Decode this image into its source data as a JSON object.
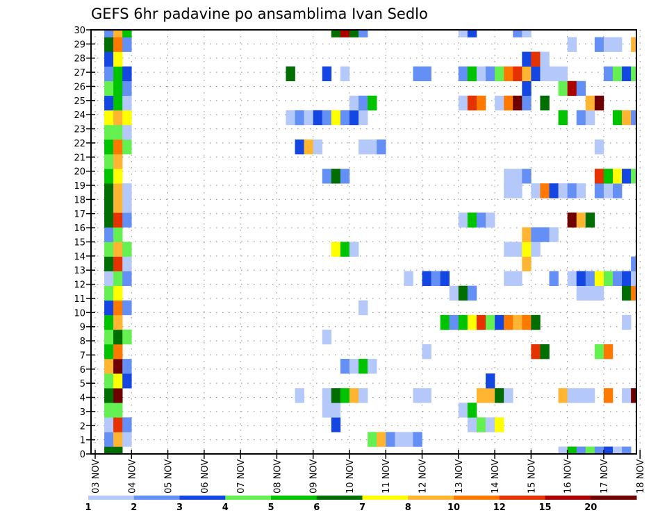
{
  "chart_data": {
    "type": "heatmap",
    "title": "GEFS 6hr padavine po ansamblima Ivan Sedlo",
    "xlabel": "",
    "ylabel": "",
    "y_ticks": [
      "0",
      "1",
      "2",
      "3",
      "4",
      "5",
      "6",
      "7",
      "8",
      "9",
      "10",
      "11",
      "12",
      "13",
      "14",
      "15",
      "16",
      "17",
      "18",
      "19",
      "20",
      "21",
      "22",
      "23",
      "24",
      "25",
      "26",
      "27",
      "28",
      "29",
      "30"
    ],
    "x_ticks": [
      "03 NOV",
      "04 NOV",
      "05 NOV",
      "06 NOV",
      "07 NOV",
      "08 NOV",
      "09 NOV",
      "10 NOV",
      "11 NOV",
      "12 NOV",
      "13 NOV",
      "14 NOV",
      "15 NOV",
      "16 NOV",
      "17 NOV",
      "18 NOV"
    ],
    "steps_per_day": 4,
    "colorbar": {
      "labels": [
        "1",
        "2",
        "3",
        "4",
        "5",
        "6",
        "7",
        "8",
        "10",
        "12",
        "15",
        "20"
      ],
      "colors": [
        "#b4c8fa",
        "#6490f5",
        "#1446e1",
        "#64f050",
        "#00c300",
        "#006e00",
        "#ffff00",
        "#ffb432",
        "#ff7800",
        "#e63200",
        "#aa0000",
        "#6e0000"
      ]
    },
    "note_cells": "each member row: list of [time_step_index, color_level_index]",
    "members": [
      {
        "row": 0,
        "cells": [
          [
            1,
            5
          ],
          [
            2,
            5
          ],
          [
            51,
            0
          ],
          [
            52,
            4
          ],
          [
            53,
            1
          ],
          [
            54,
            3
          ],
          [
            55,
            1
          ],
          [
            56,
            2
          ],
          [
            57,
            0
          ],
          [
            58,
            1
          ]
        ]
      },
      {
        "row": 1,
        "cells": [
          [
            1,
            1
          ],
          [
            2,
            7
          ],
          [
            3,
            0
          ],
          [
            30,
            3
          ],
          [
            31,
            7
          ],
          [
            32,
            1
          ],
          [
            33,
            0
          ],
          [
            34,
            0
          ],
          [
            35,
            1
          ]
        ]
      },
      {
        "row": 2,
        "cells": [
          [
            1,
            0
          ],
          [
            2,
            9
          ],
          [
            3,
            1
          ],
          [
            26,
            2
          ],
          [
            41,
            0
          ],
          [
            42,
            3
          ],
          [
            43,
            0
          ],
          [
            44,
            6
          ]
        ]
      },
      {
        "row": 3,
        "cells": [
          [
            1,
            3
          ],
          [
            2,
            3
          ],
          [
            25,
            0
          ],
          [
            26,
            0
          ],
          [
            40,
            0
          ],
          [
            41,
            4
          ]
        ]
      },
      {
        "row": 4,
        "cells": [
          [
            1,
            5
          ],
          [
            2,
            11
          ],
          [
            22,
            0
          ],
          [
            25,
            0
          ],
          [
            26,
            5
          ],
          [
            27,
            4
          ],
          [
            28,
            7
          ],
          [
            29,
            0
          ],
          [
            35,
            0
          ],
          [
            36,
            0
          ],
          [
            42,
            7
          ],
          [
            43,
            7
          ],
          [
            44,
            5
          ],
          [
            45,
            0
          ],
          [
            51,
            7
          ],
          [
            52,
            0
          ],
          [
            53,
            0
          ],
          [
            54,
            0
          ],
          [
            56,
            8
          ],
          [
            58,
            0
          ],
          [
            59,
            11
          ]
        ]
      },
      {
        "row": 5,
        "cells": [
          [
            1,
            3
          ],
          [
            2,
            6
          ],
          [
            3,
            2
          ],
          [
            43,
            2
          ]
        ]
      },
      {
        "row": 6,
        "cells": [
          [
            1,
            7
          ],
          [
            2,
            11
          ],
          [
            3,
            1
          ],
          [
            27,
            1
          ],
          [
            28,
            0
          ],
          [
            29,
            4
          ],
          [
            30,
            0
          ]
        ]
      },
      {
        "row": 7,
        "cells": [
          [
            1,
            4
          ],
          [
            2,
            8
          ],
          [
            36,
            0
          ],
          [
            48,
            9
          ],
          [
            49,
            5
          ],
          [
            55,
            3
          ],
          [
            56,
            8
          ]
        ]
      },
      {
        "row": 8,
        "cells": [
          [
            1,
            3
          ],
          [
            2,
            5
          ],
          [
            3,
            3
          ],
          [
            25,
            0
          ]
        ]
      },
      {
        "row": 9,
        "cells": [
          [
            1,
            4
          ],
          [
            2,
            7
          ],
          [
            38,
            4
          ],
          [
            39,
            1
          ],
          [
            40,
            4
          ],
          [
            41,
            6
          ],
          [
            42,
            9
          ],
          [
            43,
            3
          ],
          [
            44,
            2
          ],
          [
            45,
            8
          ],
          [
            46,
            7
          ],
          [
            47,
            8
          ],
          [
            48,
            5
          ],
          [
            58,
            0
          ]
        ]
      },
      {
        "row": 10,
        "cells": [
          [
            1,
            2
          ],
          [
            2,
            8
          ],
          [
            3,
            1
          ],
          [
            29,
            0
          ]
        ]
      },
      {
        "row": 11,
        "cells": [
          [
            1,
            3
          ],
          [
            2,
            6
          ],
          [
            39,
            0
          ],
          [
            40,
            5
          ],
          [
            41,
            1
          ],
          [
            53,
            0
          ],
          [
            54,
            0
          ],
          [
            55,
            0
          ],
          [
            58,
            5
          ],
          [
            59,
            8
          ]
        ]
      },
      {
        "row": 12,
        "cells": [
          [
            1,
            0
          ],
          [
            2,
            3
          ],
          [
            3,
            1
          ],
          [
            34,
            0
          ],
          [
            36,
            2
          ],
          [
            37,
            1
          ],
          [
            38,
            2
          ],
          [
            45,
            0
          ],
          [
            46,
            0
          ],
          [
            50,
            1
          ],
          [
            52,
            0
          ],
          [
            53,
            2
          ],
          [
            54,
            1
          ],
          [
            55,
            6
          ],
          [
            56,
            3
          ],
          [
            57,
            1
          ],
          [
            58,
            2
          ],
          [
            59,
            0
          ]
        ]
      },
      {
        "row": 13,
        "cells": [
          [
            1,
            5
          ],
          [
            2,
            9
          ],
          [
            3,
            0
          ],
          [
            47,
            7
          ],
          [
            59,
            1
          ]
        ]
      },
      {
        "row": 14,
        "cells": [
          [
            1,
            3
          ],
          [
            2,
            7
          ],
          [
            3,
            3
          ],
          [
            26,
            6
          ],
          [
            27,
            4
          ],
          [
            28,
            0
          ],
          [
            45,
            0
          ],
          [
            46,
            0
          ],
          [
            47,
            6
          ],
          [
            48,
            0
          ]
        ]
      },
      {
        "row": 15,
        "cells": [
          [
            1,
            1
          ],
          [
            2,
            3
          ],
          [
            47,
            7
          ],
          [
            48,
            1
          ],
          [
            49,
            1
          ],
          [
            50,
            0
          ]
        ]
      },
      {
        "row": 16,
        "cells": [
          [
            1,
            5
          ],
          [
            2,
            9
          ],
          [
            3,
            1
          ],
          [
            40,
            0
          ],
          [
            41,
            4
          ],
          [
            42,
            1
          ],
          [
            43,
            0
          ],
          [
            52,
            11
          ],
          [
            53,
            7
          ],
          [
            54,
            5
          ]
        ]
      },
      {
        "row": 17,
        "cells": [
          [
            1,
            5
          ],
          [
            2,
            7
          ],
          [
            3,
            0
          ]
        ]
      },
      {
        "row": 18,
        "cells": [
          [
            1,
            5
          ],
          [
            2,
            7
          ],
          [
            3,
            0
          ],
          [
            45,
            0
          ],
          [
            46,
            0
          ],
          [
            48,
            0
          ],
          [
            49,
            8
          ],
          [
            50,
            2
          ],
          [
            51,
            0
          ],
          [
            52,
            1
          ],
          [
            53,
            0
          ],
          [
            55,
            1
          ],
          [
            56,
            0
          ],
          [
            57,
            1
          ]
        ]
      },
      {
        "row": 19,
        "cells": [
          [
            1,
            4
          ],
          [
            2,
            6
          ],
          [
            25,
            1
          ],
          [
            26,
            5
          ],
          [
            27,
            1
          ],
          [
            45,
            0
          ],
          [
            46,
            0
          ],
          [
            47,
            1
          ],
          [
            55,
            9
          ],
          [
            56,
            4
          ],
          [
            57,
            6
          ],
          [
            58,
            2
          ],
          [
            59,
            3
          ]
        ]
      },
      {
        "row": 20,
        "cells": [
          [
            1,
            3
          ],
          [
            2,
            7
          ]
        ]
      },
      {
        "row": 21,
        "cells": [
          [
            1,
            4
          ],
          [
            2,
            8
          ],
          [
            3,
            3
          ],
          [
            22,
            2
          ],
          [
            23,
            7
          ],
          [
            24,
            0
          ],
          [
            29,
            0
          ],
          [
            30,
            0
          ],
          [
            31,
            1
          ],
          [
            55,
            0
          ]
        ]
      },
      {
        "row": 22,
        "cells": [
          [
            1,
            3
          ],
          [
            2,
            3
          ],
          [
            3,
            0
          ]
        ]
      },
      {
        "row": 23,
        "cells": [
          [
            1,
            6
          ],
          [
            2,
            7
          ],
          [
            3,
            6
          ],
          [
            21,
            0
          ],
          [
            22,
            1
          ],
          [
            23,
            0
          ],
          [
            24,
            2
          ],
          [
            25,
            1
          ],
          [
            26,
            6
          ],
          [
            27,
            1
          ],
          [
            28,
            2
          ],
          [
            29,
            0
          ],
          [
            51,
            4
          ],
          [
            53,
            1
          ],
          [
            54,
            0
          ],
          [
            57,
            4
          ],
          [
            58,
            7
          ],
          [
            59,
            1
          ]
        ]
      },
      {
        "row": 24,
        "cells": [
          [
            1,
            2
          ],
          [
            2,
            4
          ],
          [
            3,
            0
          ],
          [
            28,
            0
          ],
          [
            29,
            1
          ],
          [
            30,
            4
          ],
          [
            40,
            0
          ],
          [
            41,
            9
          ],
          [
            42,
            8
          ],
          [
            44,
            0
          ],
          [
            45,
            8
          ],
          [
            46,
            11
          ],
          [
            47,
            1
          ],
          [
            49,
            5
          ],
          [
            54,
            7
          ],
          [
            55,
            11
          ]
        ]
      },
      {
        "row": 25,
        "cells": [
          [
            1,
            3
          ],
          [
            2,
            4
          ],
          [
            3,
            1
          ],
          [
            47,
            2
          ],
          [
            51,
            3
          ],
          [
            52,
            10
          ],
          [
            53,
            1
          ]
        ]
      },
      {
        "row": 26,
        "cells": [
          [
            1,
            1
          ],
          [
            2,
            4
          ],
          [
            3,
            2
          ],
          [
            21,
            5
          ],
          [
            25,
            2
          ],
          [
            27,
            0
          ],
          [
            35,
            1
          ],
          [
            36,
            1
          ],
          [
            40,
            1
          ],
          [
            41,
            4
          ],
          [
            42,
            0
          ],
          [
            43,
            1
          ],
          [
            44,
            3
          ],
          [
            45,
            8
          ],
          [
            46,
            9
          ],
          [
            47,
            7
          ],
          [
            48,
            2
          ],
          [
            49,
            0
          ],
          [
            50,
            0
          ],
          [
            51,
            0
          ],
          [
            56,
            1
          ],
          [
            57,
            3
          ],
          [
            58,
            2
          ],
          [
            59,
            3
          ]
        ]
      },
      {
        "row": 27,
        "cells": [
          [
            1,
            2
          ],
          [
            2,
            6
          ],
          [
            47,
            2
          ],
          [
            48,
            9
          ],
          [
            49,
            0
          ]
        ]
      },
      {
        "row": 28,
        "cells": [
          [
            1,
            5
          ],
          [
            2,
            8
          ],
          [
            3,
            1
          ],
          [
            52,
            0
          ],
          [
            55,
            1
          ],
          [
            56,
            0
          ],
          [
            57,
            0
          ],
          [
            59,
            7
          ]
        ]
      },
      {
        "row": 29,
        "cells": [
          [
            1,
            1
          ],
          [
            2,
            7
          ],
          [
            3,
            4
          ],
          [
            26,
            5
          ],
          [
            27,
            10
          ],
          [
            28,
            5
          ],
          [
            29,
            1
          ],
          [
            40,
            0
          ],
          [
            41,
            2
          ],
          [
            46,
            1
          ],
          [
            47,
            0
          ]
        ]
      }
    ]
  }
}
